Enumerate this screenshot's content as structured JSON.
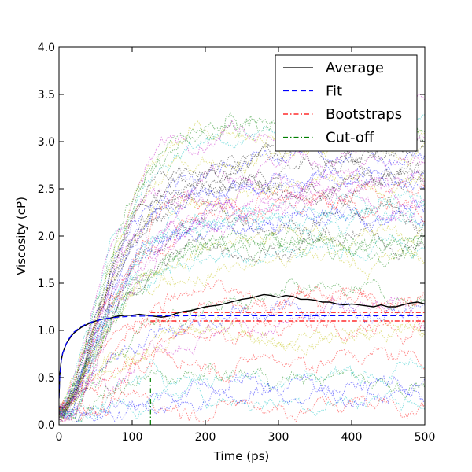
{
  "chart_data": {
    "type": "line",
    "title": "",
    "xlabel": "Time (ps)",
    "ylabel": "Viscosity (cP)",
    "xlim": [
      0,
      500
    ],
    "ylim": [
      0.0,
      4.0
    ],
    "xticks": [
      0,
      100,
      200,
      300,
      400,
      500
    ],
    "xtick_labels": [
      "0",
      "100",
      "200",
      "300",
      "400",
      "500"
    ],
    "yticks": [
      0.0,
      0.5,
      1.0,
      1.5,
      2.0,
      2.5,
      3.0,
      3.5,
      4.0
    ],
    "ytick_labels": [
      "0.0",
      "0.5",
      "1.0",
      "1.5",
      "2.0",
      "2.5",
      "3.0",
      "3.5",
      "4.0"
    ],
    "grid": false,
    "legend": {
      "placement": "top-right",
      "entries": [
        {
          "label": "Average",
          "color": "#000000",
          "style": "solid"
        },
        {
          "label": "Fit",
          "color": "#0000ff",
          "style": "dashed"
        },
        {
          "label": "Bootstraps",
          "color": "#ff0000",
          "style": "dashdot"
        },
        {
          "label": "Cut-off",
          "color": "#008000",
          "style": "dashdot"
        }
      ]
    },
    "series": [
      {
        "name": "Average",
        "color": "#000000",
        "style": "solid",
        "x": [
          0,
          1,
          3,
          5,
          10,
          15,
          20,
          30,
          40,
          50,
          60,
          70,
          80,
          90,
          100,
          110,
          120,
          130,
          140,
          150,
          160,
          170,
          180,
          190,
          200,
          210,
          220,
          230,
          240,
          250,
          260,
          270,
          280,
          290,
          300,
          310,
          320,
          330,
          340,
          350,
          360,
          370,
          380,
          390,
          400,
          410,
          420,
          430,
          440,
          450,
          460,
          470,
          480,
          490,
          500
        ],
        "y": [
          0.28,
          0.52,
          0.68,
          0.76,
          0.86,
          0.92,
          0.97,
          1.03,
          1.07,
          1.1,
          1.12,
          1.13,
          1.15,
          1.16,
          1.16,
          1.17,
          1.16,
          1.15,
          1.14,
          1.15,
          1.18,
          1.2,
          1.21,
          1.23,
          1.25,
          1.26,
          1.27,
          1.29,
          1.31,
          1.33,
          1.34,
          1.36,
          1.38,
          1.37,
          1.35,
          1.37,
          1.36,
          1.33,
          1.33,
          1.32,
          1.3,
          1.3,
          1.28,
          1.27,
          1.28,
          1.27,
          1.26,
          1.25,
          1.27,
          1.25,
          1.25,
          1.27,
          1.29,
          1.3,
          1.28
        ]
      },
      {
        "name": "Fit",
        "color": "#0000ff",
        "style": "dashed",
        "x": [
          0,
          1,
          3,
          5,
          10,
          15,
          20,
          30,
          40,
          50,
          60,
          70,
          80,
          90,
          100,
          120,
          140,
          160,
          200,
          300,
          400,
          500
        ],
        "y": [
          0.28,
          0.5,
          0.68,
          0.76,
          0.86,
          0.93,
          0.98,
          1.04,
          1.08,
          1.1,
          1.12,
          1.13,
          1.14,
          1.145,
          1.15,
          1.152,
          1.153,
          1.154,
          1.155,
          1.155,
          1.155,
          1.155
        ]
      },
      {
        "name": "Bootstraps",
        "color": "#ff0000",
        "style": "dashdot",
        "x": [
          125,
          500
        ],
        "y": [
          1.19,
          1.19
        ]
      },
      {
        "name": "Bootstraps",
        "color": "#ff0000",
        "style": "dashdot",
        "x": [
          125,
          500
        ],
        "y": [
          1.1,
          1.1
        ]
      },
      {
        "name": "Cut-off",
        "color": "#008000",
        "style": "dashdot",
        "x": [
          125,
          125
        ],
        "y": [
          0.0,
          0.5
        ]
      }
    ],
    "background_traces": {
      "count": 50,
      "colors": [
        "#0000ff",
        "#008000",
        "#ff0000",
        "#00bfbf",
        "#bf00bf",
        "#bfbf00",
        "#000000"
      ],
      "opacity": 0.45,
      "style": "dotted",
      "x_range": [
        0,
        500
      ]
    }
  }
}
